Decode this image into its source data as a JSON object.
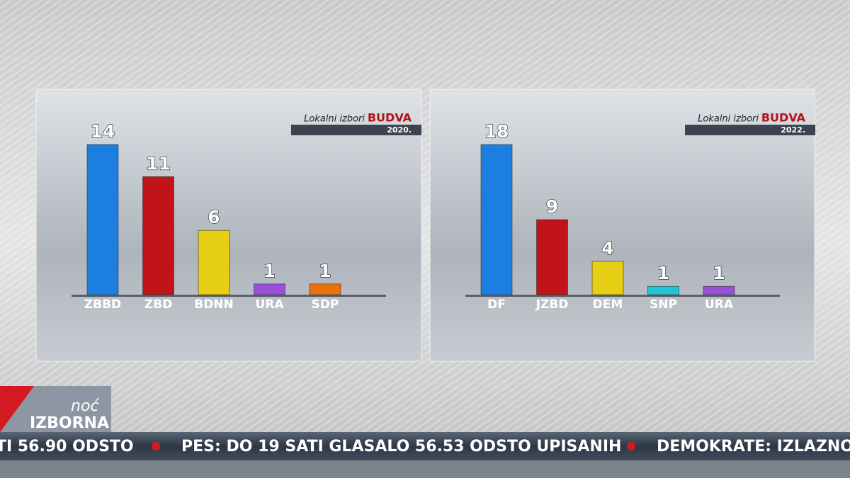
{
  "chart_data": [
    {
      "type": "bar",
      "title_prefix": "Lokalni izbori",
      "title": "BUDVA",
      "subtitle": "2020.",
      "categories": [
        "ZBBD",
        "ZBD",
        "BDNN",
        "URA",
        "SDP"
      ],
      "values": [
        14,
        11,
        6,
        1,
        1
      ],
      "colors": [
        "#1a7fe0",
        "#c0141a",
        "#e6cf14",
        "#9a4fd8",
        "#e8720e"
      ]
    },
    {
      "type": "bar",
      "title_prefix": "Lokalni izbori",
      "title": "BUDVA",
      "subtitle": "2022.",
      "categories": [
        "DF",
        "JZBD",
        "DEM",
        "SNP",
        "URA"
      ],
      "values": [
        18,
        9,
        4,
        1,
        1
      ],
      "colors": [
        "#1a7fe0",
        "#c0141a",
        "#e6cf14",
        "#22c4d8",
        "#9a4fd8"
      ]
    }
  ],
  "logo": {
    "top": "noć",
    "bottom": "IZBORNA"
  },
  "ticker": {
    "items": [
      "TI 56.90 ODSTO",
      "PES: DO 19 SATI GLASALO 56.53 ODSTO UPISANIH",
      "DEMOKRATE: IZLAZNOS"
    ]
  }
}
